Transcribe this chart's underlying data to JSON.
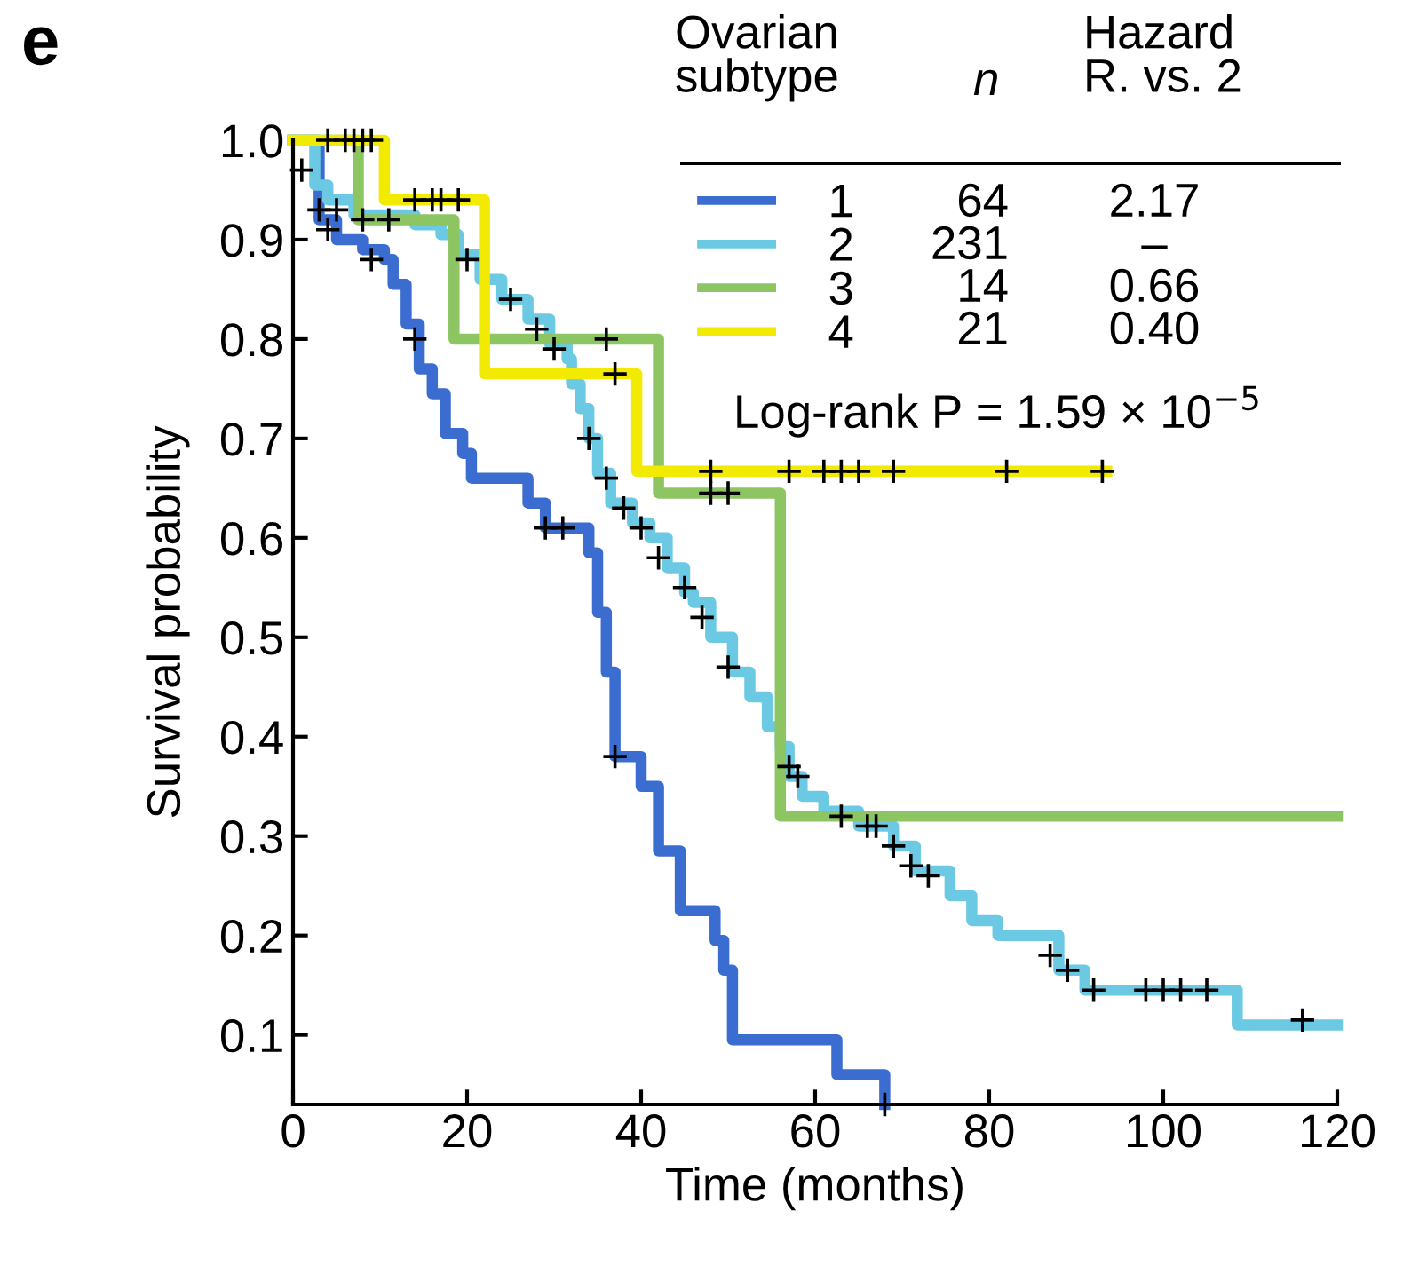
{
  "chart_data": {
    "type": "step",
    "xlabel": "Time (months)",
    "ylabel": "Survival probability",
    "annotations": [
      "e",
      "Ovarian\nsubtype",
      "n",
      "Hazard\nR. vs. 2",
      "64",
      "231",
      "14",
      "21",
      "2.17",
      "–",
      "0.66",
      "0.40",
      "Log-rank P = 1.59 × 10$^{−5}$"
    ],
    "xlim": [
      0,
      120
    ],
    "ylim": [
      0.03,
      1.0
    ],
    "xticks": [
      0,
      20,
      40,
      60,
      80,
      100,
      120
    ],
    "yticks": [
      0.1,
      0.2,
      0.3,
      0.4,
      0.5,
      0.6,
      0.7,
      0.8,
      0.9,
      {
        "value": 1,
        "label": "1.0"
      }
    ],
    "grid": false,
    "legend": "top right",
    "series": [
      {
        "name": "1",
        "color": "#3b6ccf",
        "x": [
          0,
          3,
          5,
          8,
          10.5,
          11.5,
          13,
          14.5,
          16,
          17.5,
          19.5,
          20.5,
          27,
          29,
          34,
          35,
          36,
          37,
          40,
          42,
          44.5,
          48.5,
          49.5,
          50.5,
          62.5,
          68
        ],
        "values": [
          1.0,
          0.92,
          0.9,
          0.89,
          0.88,
          0.855,
          0.815,
          0.77,
          0.745,
          0.705,
          0.685,
          0.66,
          0.635,
          0.61,
          0.585,
          0.525,
          0.465,
          0.38,
          0.35,
          0.285,
          0.225,
          0.195,
          0.165,
          0.095,
          0.06,
          0.03
        ]
      },
      {
        "name": "2",
        "color": "#6cc9e3",
        "x": [
          0,
          2.5,
          4,
          7,
          14,
          17,
          19,
          21.5,
          24,
          27,
          29.5,
          31.5,
          32,
          33,
          34,
          35,
          36.5,
          39,
          41,
          43,
          45,
          46,
          48,
          50.5,
          52.5,
          54.5,
          56,
          57,
          58.5,
          61,
          65,
          69,
          71.5,
          75.5,
          78,
          81,
          88,
          91,
          108.5,
          120
        ],
        "values": [
          1.0,
          0.955,
          0.94,
          0.925,
          0.915,
          0.905,
          0.885,
          0.86,
          0.84,
          0.82,
          0.795,
          0.78,
          0.755,
          0.73,
          0.7,
          0.665,
          0.635,
          0.615,
          0.6,
          0.57,
          0.545,
          0.535,
          0.5,
          0.465,
          0.44,
          0.41,
          0.39,
          0.36,
          0.34,
          0.325,
          0.31,
          0.29,
          0.265,
          0.24,
          0.215,
          0.2,
          0.165,
          0.145,
          0.11,
          0.11
        ]
      },
      {
        "name": "3",
        "color": "#8cc561",
        "x": [
          0,
          7.5,
          18.5,
          42,
          56,
          120
        ],
        "values": [
          1.0,
          0.92,
          0.8,
          0.645,
          0.32,
          0.32
        ]
      },
      {
        "name": "4",
        "color": "#f2ea00",
        "x": [
          0,
          10.5,
          22,
          39.5,
          93.5
        ],
        "values": [
          1.0,
          0.94,
          0.765,
          0.667,
          0.667
        ]
      },
      {
        "type": "scatter",
        "color": "#000000",
        "marker": "cross",
        "x": [
          4,
          6,
          7,
          8,
          9,
          14,
          16,
          17,
          19,
          37,
          48,
          57,
          61,
          63,
          65,
          69,
          82,
          93,
          36,
          48,
          50,
          1,
          3,
          5,
          8,
          11,
          20,
          25,
          28,
          30,
          34,
          36,
          38,
          40,
          42,
          45,
          47,
          50,
          57,
          58,
          63,
          66,
          67,
          69,
          71,
          73,
          87,
          89,
          92,
          98,
          100,
          102,
          105,
          116,
          4,
          9,
          14,
          29,
          31,
          37,
          68
        ],
        "values": [
          1.0,
          1.0,
          1.0,
          1.0,
          1.0,
          0.94,
          0.94,
          0.94,
          0.94,
          0.765,
          0.667,
          0.667,
          0.667,
          0.667,
          0.667,
          0.667,
          0.667,
          0.667,
          0.8,
          0.645,
          0.645,
          0.97,
          0.93,
          0.93,
          0.92,
          0.92,
          0.88,
          0.84,
          0.81,
          0.79,
          0.7,
          0.66,
          0.63,
          0.61,
          0.58,
          0.55,
          0.52,
          0.47,
          0.37,
          0.36,
          0.32,
          0.31,
          0.31,
          0.29,
          0.27,
          0.26,
          0.18,
          0.165,
          0.145,
          0.145,
          0.145,
          0.145,
          0.145,
          0.115,
          0.91,
          0.88,
          0.8,
          0.61,
          0.61,
          0.38,
          0.03
        ]
      }
    ]
  }
}
